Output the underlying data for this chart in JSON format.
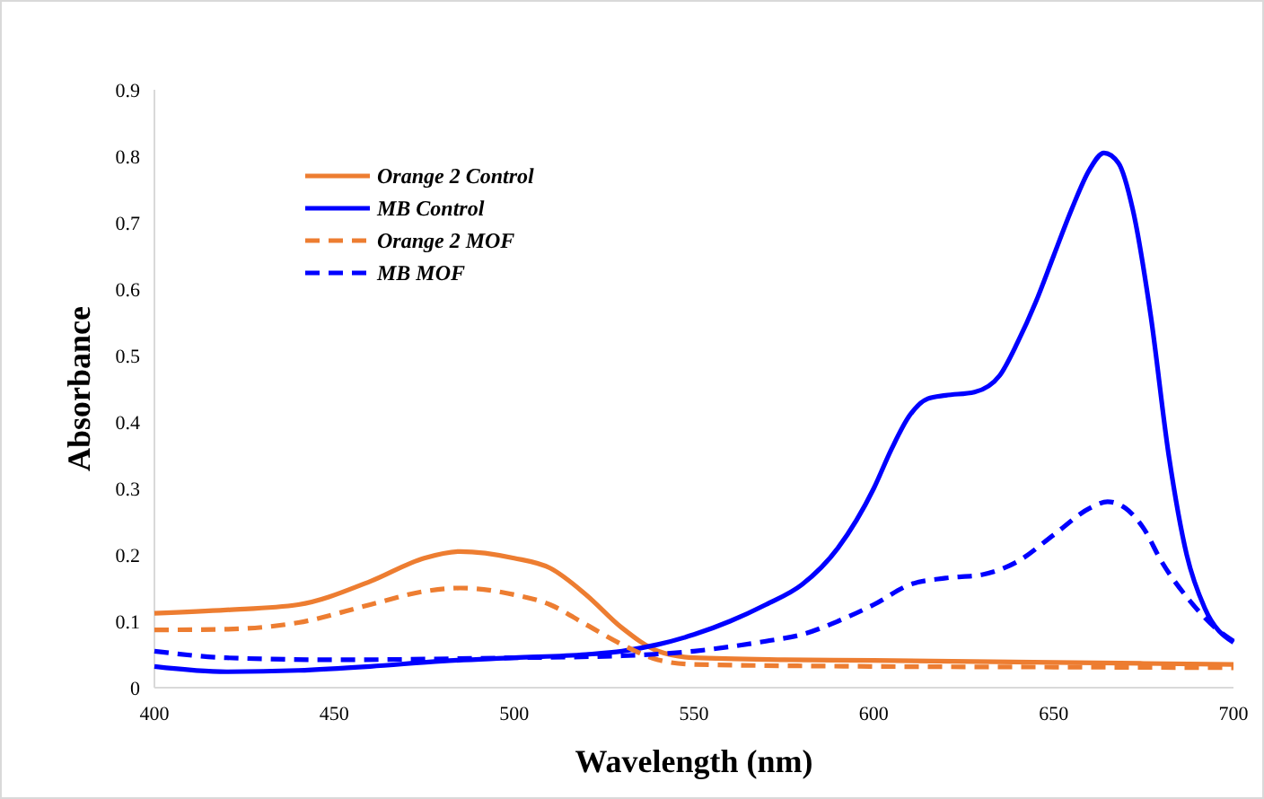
{
  "chart_data": {
    "type": "line",
    "xlabel": "Wavelength (nm)",
    "ylabel": "Absorbance",
    "xlim": [
      400,
      700
    ],
    "xticks": [
      400,
      450,
      500,
      550,
      600,
      650,
      700
    ],
    "ylim": [
      0,
      0.9
    ],
    "yticks": [
      0,
      0.1,
      0.2,
      0.3,
      0.4,
      0.5,
      0.6,
      0.7,
      0.8,
      0.9
    ],
    "grid": false,
    "legend": "top left",
    "marker": "none",
    "series": [
      {
        "name": "Orange 2 Control",
        "color": "#ed7d31",
        "line_style": "solid",
        "x": [
          400,
          420,
          440,
          460,
          475,
          485,
          500,
          510,
          520,
          530,
          540,
          550,
          575,
          600,
          650,
          700
        ],
        "values": [
          0.112,
          0.117,
          0.125,
          0.16,
          0.195,
          0.205,
          0.195,
          0.18,
          0.14,
          0.09,
          0.055,
          0.045,
          0.042,
          0.041,
          0.038,
          0.035
        ]
      },
      {
        "name": "MB Control",
        "color": "#0000ff",
        "line_style": "solid",
        "x": [
          400,
          420,
          440,
          460,
          480,
          500,
          520,
          530,
          540,
          550,
          560,
          570,
          580,
          590,
          600,
          605,
          610,
          615,
          620,
          628,
          635,
          640,
          645,
          650,
          655,
          660,
          664,
          668,
          672,
          677,
          682,
          687,
          692,
          700
        ],
        "values": [
          0.032,
          0.024,
          0.026,
          0.032,
          0.04,
          0.045,
          0.05,
          0.055,
          0.065,
          0.08,
          0.1,
          0.125,
          0.155,
          0.21,
          0.3,
          0.36,
          0.41,
          0.435,
          0.44,
          0.445,
          0.47,
          0.52,
          0.58,
          0.65,
          0.72,
          0.78,
          0.805,
          0.79,
          0.72,
          0.56,
          0.35,
          0.2,
          0.12,
          0.068
        ]
      },
      {
        "name": "Orange 2 MOF",
        "color": "#ed7d31",
        "line_style": "dashed",
        "x": [
          400,
          420,
          440,
          460,
          475,
          485,
          500,
          510,
          520,
          530,
          540,
          550,
          600,
          650,
          700
        ],
        "values": [
          0.087,
          0.088,
          0.098,
          0.125,
          0.145,
          0.15,
          0.14,
          0.125,
          0.095,
          0.065,
          0.042,
          0.035,
          0.032,
          0.031,
          0.03
        ]
      },
      {
        "name": "MB MOF",
        "color": "#0000ff",
        "line_style": "dashed",
        "x": [
          400,
          420,
          450,
          500,
          530,
          550,
          570,
          580,
          590,
          600,
          610,
          620,
          630,
          640,
          650,
          660,
          665,
          670,
          675,
          680,
          688,
          695,
          700
        ],
        "values": [
          0.055,
          0.045,
          0.042,
          0.045,
          0.048,
          0.055,
          0.07,
          0.08,
          0.1,
          0.125,
          0.155,
          0.165,
          0.17,
          0.19,
          0.23,
          0.27,
          0.28,
          0.27,
          0.24,
          0.19,
          0.13,
          0.09,
          0.07
        ]
      }
    ]
  }
}
